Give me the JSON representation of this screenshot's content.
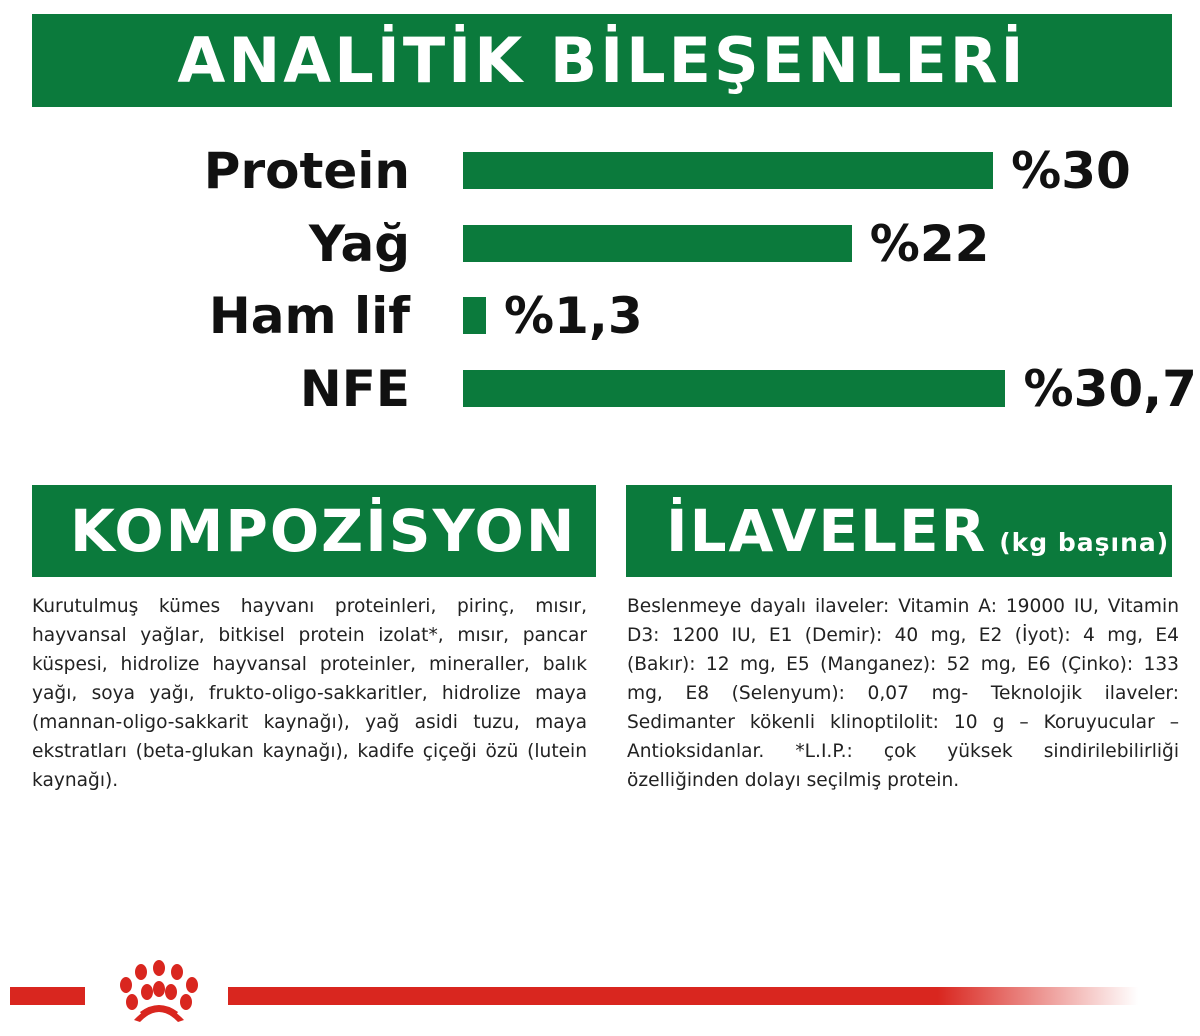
{
  "header": {
    "title": "ANALİTİK BİLEŞENLERİ"
  },
  "chart_data": {
    "type": "bar",
    "orientation": "horizontal",
    "categories": [
      "Protein",
      "Yağ",
      "Ham lif",
      "NFE"
    ],
    "values": [
      30,
      22,
      1.3,
      30.7
    ],
    "value_labels": [
      "%30",
      "%22",
      "%1,3",
      "%30,7"
    ],
    "title": "ANALİTİK BİLEŞENLERİ",
    "xlim": [
      0,
      30.7
    ],
    "grid": false,
    "bar_color": "#0b7a3c"
  },
  "composition": {
    "title": "KOMPOZİSYON",
    "text": "Kurutulmuş kümes hayvanı proteinleri, pirinç, mısır, hayvansal yağlar, bitkisel protein izolat*, mısır, pancar küspesi, hidrolize hayvansal proteinler, mineraller, balık yağı, soya yağı, frukto-oligo-sakkaritler, hidrolize maya (mannan-oligo-sakkarit kaynağı), yağ asidi tuzu, maya ekstratları (beta-glukan kaynağı), kadife çiçeği özü (lutein kaynağı)."
  },
  "additives": {
    "title": "İLAVELER",
    "subtitle": "(kg başına)",
    "text": "Beslenmeye dayalı ilaveler: Vitamin A: 19000 IU, Vitamin D3: 1200 IU, E1 (Demir): 40 mg, E2 (İyot): 4 mg, E4 (Bakır): 12 mg, E5 (Manganez): 52 mg, E6 (Çinko): 133 mg, E8 (Selenyum): 0,07 mg- Teknolojik ilaveler: Sedimanter kökenli klinoptilolit: 10 g – Koruyucular – Antioksidanlar. *L.I.P.: çok yüksek sindirilebilirliği özelliğinden dolayı seçilmiş protein."
  },
  "colors": {
    "green": "#0b7a3c",
    "brand_red": "#d9261f"
  },
  "footer": {
    "logo": "royal-canin-crown-logo"
  }
}
